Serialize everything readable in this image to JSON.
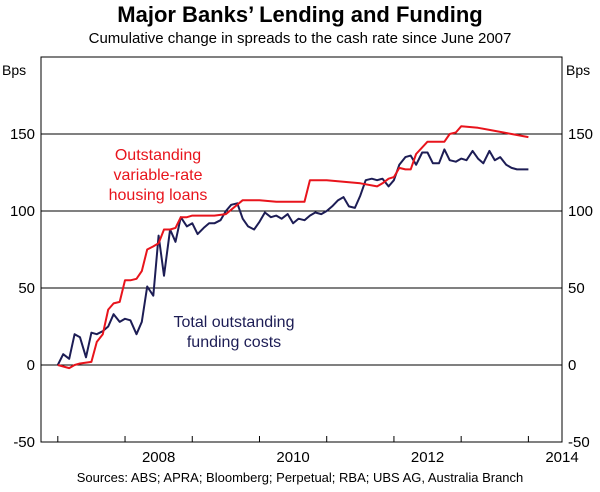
{
  "chart_data": {
    "type": "line",
    "title": "Major Banks’ Lending and Funding",
    "subtitle": "Cumulative change in spreads to the cash rate since June 2007",
    "ylabel_left": "Bps",
    "ylabel_right": "Bps",
    "ylim": [
      -50,
      200
    ],
    "yticks": [
      "-50",
      "0",
      "50",
      "100",
      "150"
    ],
    "ytick_values": [
      -50,
      0,
      50,
      100,
      150
    ],
    "xlim": [
      2006.75,
      2014.5
    ],
    "xtick_labels": [
      "2008",
      "2010",
      "2012",
      "2014"
    ],
    "xtick_label_values": [
      2008,
      2010,
      2012,
      2014
    ],
    "xticks_major": [
      2007,
      2008,
      2009,
      2010,
      2011,
      2012,
      2013,
      2014
    ],
    "grid": "horizontal",
    "series": [
      {
        "name": "Outstanding variable-rate housing loans",
        "label_lines": [
          "Outstanding",
          "variable-rate",
          "housing loans"
        ],
        "color": "#e8141c",
        "x": [
          2007.0,
          2007.17,
          2007.25,
          2007.33,
          2007.5,
          2007.58,
          2007.67,
          2007.75,
          2007.83,
          2007.92,
          2008.0,
          2008.08,
          2008.17,
          2008.25,
          2008.33,
          2008.42,
          2008.5,
          2008.58,
          2008.67,
          2008.75,
          2008.83,
          2008.92,
          2009.0,
          2009.17,
          2009.33,
          2009.5,
          2009.75,
          2010.0,
          2010.25,
          2010.5,
          2010.58,
          2010.67,
          2010.75,
          2011.0,
          2011.25,
          2011.5,
          2011.75,
          2011.83,
          2011.92,
          2012.0,
          2012.08,
          2012.17,
          2012.25,
          2012.33,
          2012.5,
          2012.58,
          2012.75,
          2012.83,
          2012.92,
          2013.0,
          2013.25,
          2013.5,
          2013.75,
          2014.0
        ],
        "y": [
          0,
          -2,
          0,
          1,
          2,
          15,
          20,
          36,
          40,
          41,
          55,
          55,
          56,
          61,
          75,
          77,
          79,
          88,
          88,
          89,
          96,
          96,
          97,
          97,
          97,
          98,
          107,
          107,
          106,
          106,
          106,
          106,
          120,
          120,
          119,
          118,
          116,
          118,
          121,
          122,
          128,
          127,
          127,
          137,
          145,
          145,
          145,
          150,
          151,
          155,
          154,
          152,
          150,
          148
        ]
      },
      {
        "name": "Total outstanding funding costs",
        "label_lines": [
          "Total outstanding",
          "funding costs"
        ],
        "color": "#1d1d55",
        "x": [
          2007.0,
          2007.08,
          2007.17,
          2007.25,
          2007.33,
          2007.42,
          2007.5,
          2007.58,
          2007.67,
          2007.75,
          2007.83,
          2007.92,
          2008.0,
          2008.08,
          2008.17,
          2008.25,
          2008.33,
          2008.42,
          2008.5,
          2008.58,
          2008.67,
          2008.75,
          2008.83,
          2008.92,
          2009.0,
          2009.08,
          2009.17,
          2009.25,
          2009.33,
          2009.42,
          2009.5,
          2009.58,
          2009.67,
          2009.75,
          2009.83,
          2009.92,
          2010.0,
          2010.08,
          2010.17,
          2010.25,
          2010.33,
          2010.42,
          2010.5,
          2010.58,
          2010.67,
          2010.75,
          2010.83,
          2010.92,
          2011.0,
          2011.08,
          2011.17,
          2011.25,
          2011.33,
          2011.42,
          2011.5,
          2011.58,
          2011.67,
          2011.75,
          2011.83,
          2011.92,
          2012.0,
          2012.08,
          2012.17,
          2012.25,
          2012.33,
          2012.42,
          2012.5,
          2012.58,
          2012.67,
          2012.75,
          2012.83,
          2012.92,
          2013.0,
          2013.08,
          2013.17,
          2013.25,
          2013.33,
          2013.42,
          2013.5,
          2013.58,
          2013.67,
          2013.75,
          2013.83,
          2013.92,
          2014.0
        ],
        "y": [
          0,
          7,
          4,
          20,
          18,
          5,
          21,
          20,
          22,
          25,
          33,
          28,
          30,
          29,
          20,
          28,
          51,
          45,
          84,
          58,
          88,
          80,
          96,
          90,
          92,
          85,
          89,
          92,
          92,
          94,
          100,
          104,
          105,
          95,
          90,
          88,
          93,
          99,
          96,
          97,
          95,
          98,
          92,
          95,
          94,
          97,
          99,
          98,
          100,
          103,
          107,
          109,
          103,
          102,
          110,
          120,
          121,
          120,
          121,
          116,
          120,
          130,
          135,
          136,
          130,
          138,
          138,
          131,
          131,
          140,
          133,
          132,
          134,
          133,
          139,
          134,
          131,
          139,
          133,
          135,
          130,
          128,
          127,
          127,
          127
        ]
      }
    ],
    "source_text": "Sources: ABS; APRA; Bloomberg; Perpetual; RBA; UBS AG, Australia Branch"
  }
}
